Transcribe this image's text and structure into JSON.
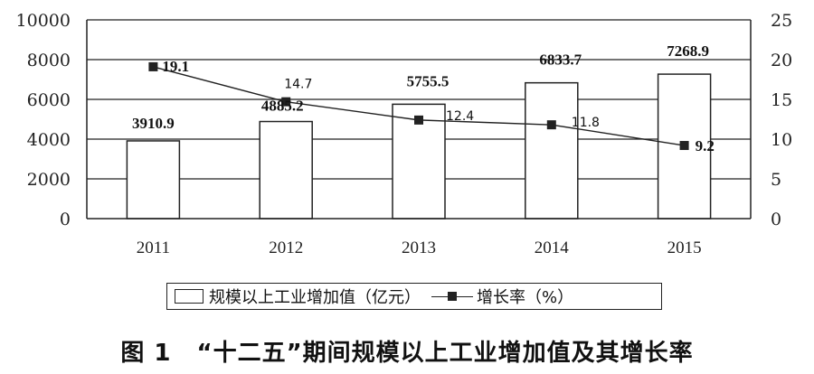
{
  "chart_data": {
    "type": "bar",
    "categories": [
      "2011",
      "2012",
      "2013",
      "2014",
      "2015"
    ],
    "series": [
      {
        "name": "规模以上工业增加值（亿元）",
        "type": "bar",
        "axis": "left",
        "values": [
          3910.9,
          4885.2,
          5755.5,
          6833.7,
          7268.9
        ],
        "labels": [
          "3910.9",
          "4885.2",
          "5755.5",
          "6833.7",
          "7268.9"
        ]
      },
      {
        "name": "增长率（%）",
        "type": "line",
        "axis": "right",
        "values": [
          19.1,
          14.7,
          12.4,
          11.8,
          9.2
        ],
        "labels": [
          "19.1",
          "14.7",
          "12.4",
          "11.8",
          "9.2"
        ]
      }
    ],
    "y_left": {
      "ylim": [
        0,
        10000
      ],
      "ticks": [
        "0",
        "2000",
        "4000",
        "6000",
        "8000",
        "10000"
      ]
    },
    "y_right": {
      "ylim": [
        0,
        25
      ],
      "ticks": [
        "0",
        "5",
        "10",
        "15",
        "20",
        "25"
      ]
    },
    "grid": true,
    "legend_position": "bottom"
  },
  "legend": {
    "bar_label": "规模以上工业增加值（亿元）",
    "line_label": "增长率（%）"
  },
  "caption": {
    "number": "图 1",
    "title": "“十二五”期间规模以上工业增加值及其增长率"
  },
  "colors": {
    "ink": "#222222",
    "bar_fill": "#ffffff",
    "grid": "#222222"
  }
}
